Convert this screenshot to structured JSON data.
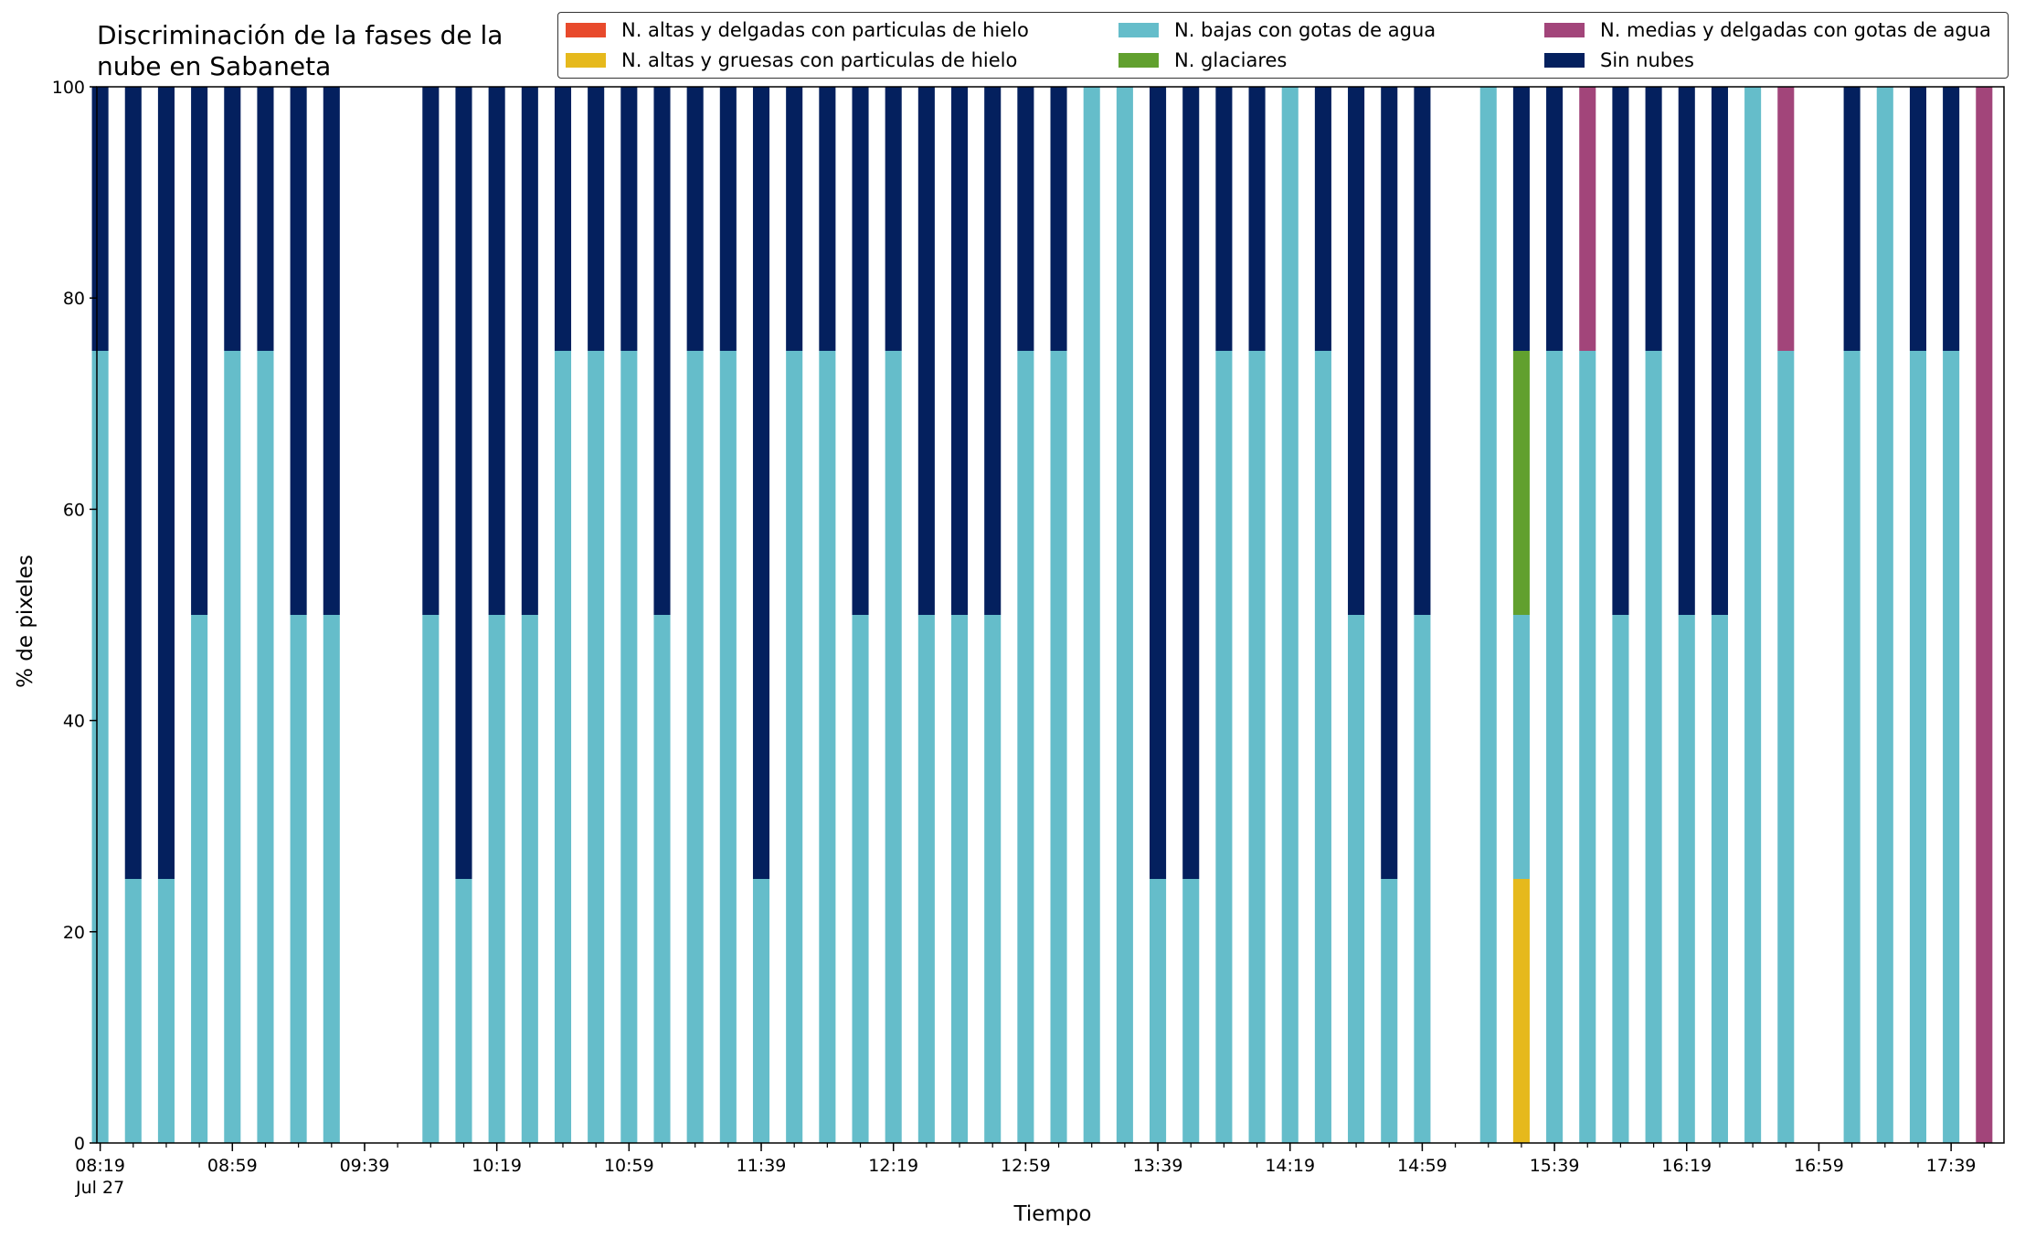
{
  "chart_data": {
    "type": "bar",
    "stacked": true,
    "title": "Discriminación de la fases de la\nnube en Sabaneta",
    "xlabel": "Tiempo",
    "ylabel": "% de pixeles",
    "ylim": [
      0,
      100
    ],
    "yticks": [
      "0",
      "20",
      "40",
      "60",
      "80",
      "100"
    ],
    "xtick_labels": [
      {
        "label": "08:19\nJul 27",
        "minutes": 499
      },
      {
        "label": "08:59",
        "minutes": 539
      },
      {
        "label": "09:39",
        "minutes": 579
      },
      {
        "label": "10:19",
        "minutes": 619
      },
      {
        "label": "10:59",
        "minutes": 659
      },
      {
        "label": "11:39",
        "minutes": 699
      },
      {
        "label": "12:19",
        "minutes": 739
      },
      {
        "label": "12:59",
        "minutes": 779
      },
      {
        "label": "13:39",
        "minutes": 819
      },
      {
        "label": "14:19",
        "minutes": 859
      },
      {
        "label": "14:59",
        "minutes": 899
      },
      {
        "label": "15:39",
        "minutes": 939
      },
      {
        "label": "16:19",
        "minutes": 979
      },
      {
        "label": "16:59",
        "minutes": 1019
      },
      {
        "label": "17:39",
        "minutes": 1059
      }
    ],
    "x_range_minutes": [
      498,
      1075
    ],
    "bar_width_minutes": 5,
    "legend_position": "top-right",
    "grid": false,
    "series": [
      {
        "name": "N. altas y delgadas con particulas de hielo",
        "color": "#e84a2c"
      },
      {
        "name": "N. altas y gruesas con particulas de hielo",
        "color": "#e6b91c"
      },
      {
        "name": "N. bajas con gotas de agua",
        "color": "#65bdca"
      },
      {
        "name": "N. glaciares",
        "color": "#61a02e"
      },
      {
        "name": "N. medias y delgadas con gotas de agua",
        "color": "#a2457a"
      },
      {
        "name": "Sin nubes",
        "color": "#04205e"
      }
    ],
    "bars": [
      {
        "time": "08:19",
        "minutes": 499,
        "values": [
          0,
          0,
          75,
          0,
          0,
          25
        ]
      },
      {
        "time": "08:29",
        "minutes": 509,
        "values": [
          0,
          0,
          25,
          0,
          0,
          75
        ]
      },
      {
        "time": "08:39",
        "minutes": 519,
        "values": [
          0,
          0,
          25,
          0,
          0,
          75
        ]
      },
      {
        "time": "08:49",
        "minutes": 529,
        "values": [
          0,
          0,
          50,
          0,
          0,
          50
        ]
      },
      {
        "time": "08:59",
        "minutes": 539,
        "values": [
          0,
          0,
          75,
          0,
          0,
          25
        ]
      },
      {
        "time": "09:09",
        "minutes": 549,
        "values": [
          0,
          0,
          75,
          0,
          0,
          25
        ]
      },
      {
        "time": "09:19",
        "minutes": 559,
        "values": [
          0,
          0,
          50,
          0,
          0,
          50
        ]
      },
      {
        "time": "09:29",
        "minutes": 569,
        "values": [
          0,
          0,
          50,
          0,
          0,
          50
        ]
      },
      {
        "time": "09:59",
        "minutes": 599,
        "values": [
          0,
          0,
          50,
          0,
          0,
          50
        ]
      },
      {
        "time": "10:09",
        "minutes": 609,
        "values": [
          0,
          0,
          25,
          0,
          0,
          75
        ]
      },
      {
        "time": "10:19",
        "minutes": 619,
        "values": [
          0,
          0,
          50,
          0,
          0,
          50
        ]
      },
      {
        "time": "10:29",
        "minutes": 629,
        "values": [
          0,
          0,
          50,
          0,
          0,
          50
        ]
      },
      {
        "time": "10:39",
        "minutes": 639,
        "values": [
          0,
          0,
          75,
          0,
          0,
          25
        ]
      },
      {
        "time": "10:49",
        "minutes": 649,
        "values": [
          0,
          0,
          75,
          0,
          0,
          25
        ]
      },
      {
        "time": "10:59",
        "minutes": 659,
        "values": [
          0,
          0,
          75,
          0,
          0,
          25
        ]
      },
      {
        "time": "11:09",
        "minutes": 669,
        "values": [
          0,
          0,
          50,
          0,
          0,
          50
        ]
      },
      {
        "time": "11:19",
        "minutes": 679,
        "values": [
          0,
          0,
          75,
          0,
          0,
          25
        ]
      },
      {
        "time": "11:29",
        "minutes": 689,
        "values": [
          0,
          0,
          75,
          0,
          0,
          25
        ]
      },
      {
        "time": "11:39",
        "minutes": 699,
        "values": [
          0,
          0,
          25,
          0,
          0,
          75
        ]
      },
      {
        "time": "11:49",
        "minutes": 709,
        "values": [
          0,
          0,
          75,
          0,
          0,
          25
        ]
      },
      {
        "time": "11:59",
        "minutes": 719,
        "values": [
          0,
          0,
          75,
          0,
          0,
          25
        ]
      },
      {
        "time": "12:09",
        "minutes": 729,
        "values": [
          0,
          0,
          50,
          0,
          0,
          50
        ]
      },
      {
        "time": "12:19",
        "minutes": 739,
        "values": [
          0,
          0,
          75,
          0,
          0,
          25
        ]
      },
      {
        "time": "12:29",
        "minutes": 749,
        "values": [
          0,
          0,
          50,
          0,
          0,
          50
        ]
      },
      {
        "time": "12:39",
        "minutes": 759,
        "values": [
          0,
          0,
          50,
          0,
          0,
          50
        ]
      },
      {
        "time": "12:49",
        "minutes": 769,
        "values": [
          0,
          0,
          50,
          0,
          0,
          50
        ]
      },
      {
        "time": "12:59",
        "minutes": 779,
        "values": [
          0,
          0,
          75,
          0,
          0,
          25
        ]
      },
      {
        "time": "13:09",
        "minutes": 789,
        "values": [
          0,
          0,
          75,
          0,
          0,
          25
        ]
      },
      {
        "time": "13:19",
        "minutes": 799,
        "values": [
          0,
          0,
          100,
          0,
          0,
          0
        ]
      },
      {
        "time": "13:29",
        "minutes": 809,
        "values": [
          0,
          0,
          100,
          0,
          0,
          0
        ]
      },
      {
        "time": "13:39",
        "minutes": 819,
        "values": [
          0,
          0,
          25,
          0,
          0,
          75
        ]
      },
      {
        "time": "13:49",
        "minutes": 829,
        "values": [
          0,
          0,
          25,
          0,
          0,
          75
        ]
      },
      {
        "time": "13:59",
        "minutes": 839,
        "values": [
          0,
          0,
          75,
          0,
          0,
          25
        ]
      },
      {
        "time": "14:09",
        "minutes": 849,
        "values": [
          0,
          0,
          75,
          0,
          0,
          25
        ]
      },
      {
        "time": "14:19",
        "minutes": 859,
        "values": [
          0,
          0,
          100,
          0,
          0,
          0
        ]
      },
      {
        "time": "14:29",
        "minutes": 869,
        "values": [
          0,
          0,
          75,
          0,
          0,
          25
        ]
      },
      {
        "time": "14:39",
        "minutes": 879,
        "values": [
          0,
          0,
          50,
          0,
          0,
          50
        ]
      },
      {
        "time": "14:49",
        "minutes": 889,
        "values": [
          0,
          0,
          25,
          0,
          0,
          75
        ]
      },
      {
        "time": "14:59",
        "minutes": 899,
        "values": [
          0,
          0,
          50,
          0,
          0,
          50
        ]
      },
      {
        "time": "15:19",
        "minutes": 919,
        "values": [
          0,
          0,
          100,
          0,
          0,
          0
        ]
      },
      {
        "time": "15:29",
        "minutes": 929,
        "values": [
          0,
          25,
          25,
          25,
          0,
          25
        ]
      },
      {
        "time": "15:39",
        "minutes": 939,
        "values": [
          0,
          0,
          75,
          0,
          0,
          25
        ]
      },
      {
        "time": "15:49",
        "minutes": 949,
        "values": [
          0,
          0,
          75,
          0,
          25,
          0
        ]
      },
      {
        "time": "15:59",
        "minutes": 959,
        "values": [
          0,
          0,
          50,
          0,
          0,
          50
        ]
      },
      {
        "time": "16:09",
        "minutes": 969,
        "values": [
          0,
          0,
          75,
          0,
          0,
          25
        ]
      },
      {
        "time": "16:19",
        "minutes": 979,
        "values": [
          0,
          0,
          50,
          0,
          0,
          50
        ]
      },
      {
        "time": "16:29",
        "minutes": 989,
        "values": [
          0,
          0,
          50,
          0,
          0,
          50
        ]
      },
      {
        "time": "16:39",
        "minutes": 999,
        "values": [
          0,
          0,
          100,
          0,
          0,
          0
        ]
      },
      {
        "time": "16:49",
        "minutes": 1009,
        "values": [
          0,
          0,
          75,
          0,
          25,
          0
        ]
      },
      {
        "time": "17:09",
        "minutes": 1029,
        "values": [
          0,
          0,
          75,
          0,
          0,
          25
        ]
      },
      {
        "time": "17:19",
        "minutes": 1039,
        "values": [
          0,
          0,
          100,
          0,
          0,
          0
        ]
      },
      {
        "time": "17:29",
        "minutes": 1049,
        "values": [
          0,
          0,
          75,
          0,
          0,
          25
        ]
      },
      {
        "time": "17:39",
        "minutes": 1059,
        "values": [
          0,
          0,
          75,
          0,
          0,
          25
        ]
      },
      {
        "time": "17:49",
        "minutes": 1069,
        "values": [
          0,
          0,
          0,
          0,
          100,
          0
        ]
      }
    ]
  }
}
